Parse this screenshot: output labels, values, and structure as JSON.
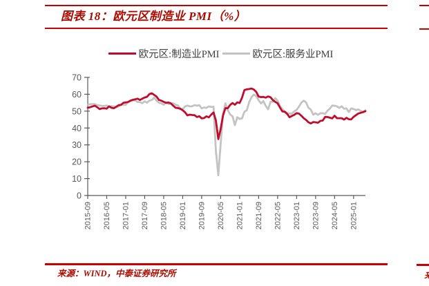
{
  "figure": {
    "title": "图表 18：欧元区制造业 PMI（%）",
    "source": "来源：WIND，中泰证券研究所",
    "accent_text_red": "#ad0a00",
    "rule_red": "#c70000",
    "next_column_fragment": "来"
  },
  "chart_data": {
    "type": "line",
    "title": "欧元区制造业 PMI（%）",
    "xlabel": "",
    "ylabel": "",
    "ylim": [
      0,
      70
    ],
    "ytick_step": 10,
    "grid": false,
    "legend_position": "top-center",
    "axis_color": "#595959",
    "label_color": "#595959",
    "x_tick_every": 8,
    "x_tick_labels": [
      "2015-09",
      "2016-05",
      "2017-01",
      "2017-09",
      "2018-05",
      "2019-01",
      "2019-09",
      "2020-05",
      "2021-01",
      "2021-09",
      "2022-05",
      "2023-01",
      "2023-09",
      "2024-05",
      "2025-01"
    ],
    "x": [
      "2015-09",
      "2015-10",
      "2015-11",
      "2015-12",
      "2016-01",
      "2016-02",
      "2016-03",
      "2016-04",
      "2016-05",
      "2016-06",
      "2016-07",
      "2016-08",
      "2016-09",
      "2016-10",
      "2016-11",
      "2016-12",
      "2017-01",
      "2017-02",
      "2017-03",
      "2017-04",
      "2017-05",
      "2017-06",
      "2017-07",
      "2017-08",
      "2017-09",
      "2017-10",
      "2017-11",
      "2017-12",
      "2018-01",
      "2018-02",
      "2018-03",
      "2018-04",
      "2018-05",
      "2018-06",
      "2018-07",
      "2018-08",
      "2018-09",
      "2018-10",
      "2018-11",
      "2018-12",
      "2019-01",
      "2019-02",
      "2019-03",
      "2019-04",
      "2019-05",
      "2019-06",
      "2019-07",
      "2019-08",
      "2019-09",
      "2019-10",
      "2019-11",
      "2019-12",
      "2020-01",
      "2020-02",
      "2020-03",
      "2020-04",
      "2020-05",
      "2020-06",
      "2020-07",
      "2020-08",
      "2020-09",
      "2020-10",
      "2020-11",
      "2020-12",
      "2021-01",
      "2021-02",
      "2021-03",
      "2021-04",
      "2021-05",
      "2021-06",
      "2021-07",
      "2021-08",
      "2021-09",
      "2021-10",
      "2021-11",
      "2021-12",
      "2022-01",
      "2022-02",
      "2022-03",
      "2022-04",
      "2022-05",
      "2022-06",
      "2022-07",
      "2022-08",
      "2022-09",
      "2022-10",
      "2022-11",
      "2022-12",
      "2023-01",
      "2023-02",
      "2023-03",
      "2023-04",
      "2023-05",
      "2023-06",
      "2023-07",
      "2023-08",
      "2023-09",
      "2023-10",
      "2023-11",
      "2023-12",
      "2024-01",
      "2024-02",
      "2024-03",
      "2024-04",
      "2024-05",
      "2024-06",
      "2024-07",
      "2024-08",
      "2024-09",
      "2024-10",
      "2024-11",
      "2024-12",
      "2025-01",
      "2025-02",
      "2025-03",
      "2025-04",
      "2025-05",
      "2025-06"
    ],
    "series": [
      {
        "name": "欧元区:制造业PMI",
        "color": "#c20a2c",
        "values": [
          52.0,
          52.3,
          52.8,
          53.2,
          52.3,
          51.2,
          51.6,
          51.7,
          51.5,
          52.8,
          52.0,
          51.7,
          52.6,
          53.5,
          53.7,
          54.9,
          55.2,
          55.4,
          56.2,
          56.7,
          57.0,
          57.4,
          56.6,
          57.4,
          58.1,
          58.5,
          60.1,
          60.6,
          59.6,
          58.6,
          56.6,
          56.2,
          55.5,
          54.9,
          55.1,
          54.6,
          53.2,
          52.0,
          51.8,
          51.4,
          50.5,
          49.3,
          47.5,
          47.9,
          47.7,
          47.6,
          46.5,
          47.0,
          45.7,
          45.9,
          46.9,
          46.3,
          47.9,
          49.2,
          44.5,
          33.4,
          39.4,
          47.4,
          51.8,
          51.7,
          53.7,
          54.8,
          53.8,
          55.2,
          54.8,
          57.9,
          62.5,
          62.9,
          63.1,
          63.4,
          62.8,
          61.4,
          58.6,
          58.3,
          58.4,
          58.0,
          58.7,
          58.2,
          56.5,
          55.5,
          54.6,
          52.1,
          49.8,
          49.6,
          48.4,
          46.4,
          47.1,
          47.8,
          48.8,
          48.5,
          47.3,
          45.8,
          44.8,
          43.4,
          42.7,
          43.5,
          43.4,
          43.1,
          44.2,
          44.4,
          46.6,
          46.5,
          46.1,
          45.7,
          47.3,
          45.8,
          45.8,
          45.8,
          45.0,
          46.0,
          45.2,
          45.1,
          46.6,
          47.6,
          48.6,
          49.0,
          49.4,
          50.0
        ]
      },
      {
        "name": "欧元区:服务业PMI",
        "color": "#c3c3c3",
        "values": [
          53.7,
          54.1,
          54.2,
          54.2,
          53.6,
          53.3,
          53.1,
          53.1,
          53.3,
          52.8,
          52.9,
          52.8,
          52.2,
          52.8,
          53.8,
          53.7,
          53.7,
          55.5,
          56.0,
          56.4,
          56.3,
          55.4,
          55.4,
          54.7,
          55.8,
          55.0,
          56.2,
          56.6,
          58.0,
          56.2,
          54.9,
          54.7,
          53.8,
          55.2,
          54.2,
          54.4,
          54.7,
          53.7,
          53.4,
          51.2,
          51.2,
          52.8,
          53.3,
          52.8,
          52.9,
          53.6,
          53.2,
          53.5,
          51.6,
          52.2,
          51.9,
          52.8,
          52.5,
          52.6,
          26.4,
          12.0,
          30.5,
          48.3,
          54.7,
          50.5,
          48.0,
          46.9,
          41.7,
          46.4,
          45.4,
          45.7,
          49.6,
          50.5,
          55.2,
          58.3,
          59.8,
          59.0,
          56.4,
          54.6,
          55.9,
          53.1,
          51.1,
          55.5,
          55.6,
          57.7,
          56.1,
          53.0,
          51.2,
          49.8,
          48.8,
          48.6,
          48.5,
          49.8,
          50.8,
          52.7,
          55.0,
          56.2,
          55.1,
          52.0,
          50.9,
          47.9,
          48.7,
          47.8,
          48.7,
          48.8,
          48.4,
          50.2,
          51.5,
          53.3,
          53.2,
          52.8,
          51.9,
          52.9,
          51.4,
          51.6,
          49.5,
          51.6,
          51.3,
          50.6,
          51.0,
          50.1,
          49.7,
          50.5
        ]
      }
    ]
  }
}
